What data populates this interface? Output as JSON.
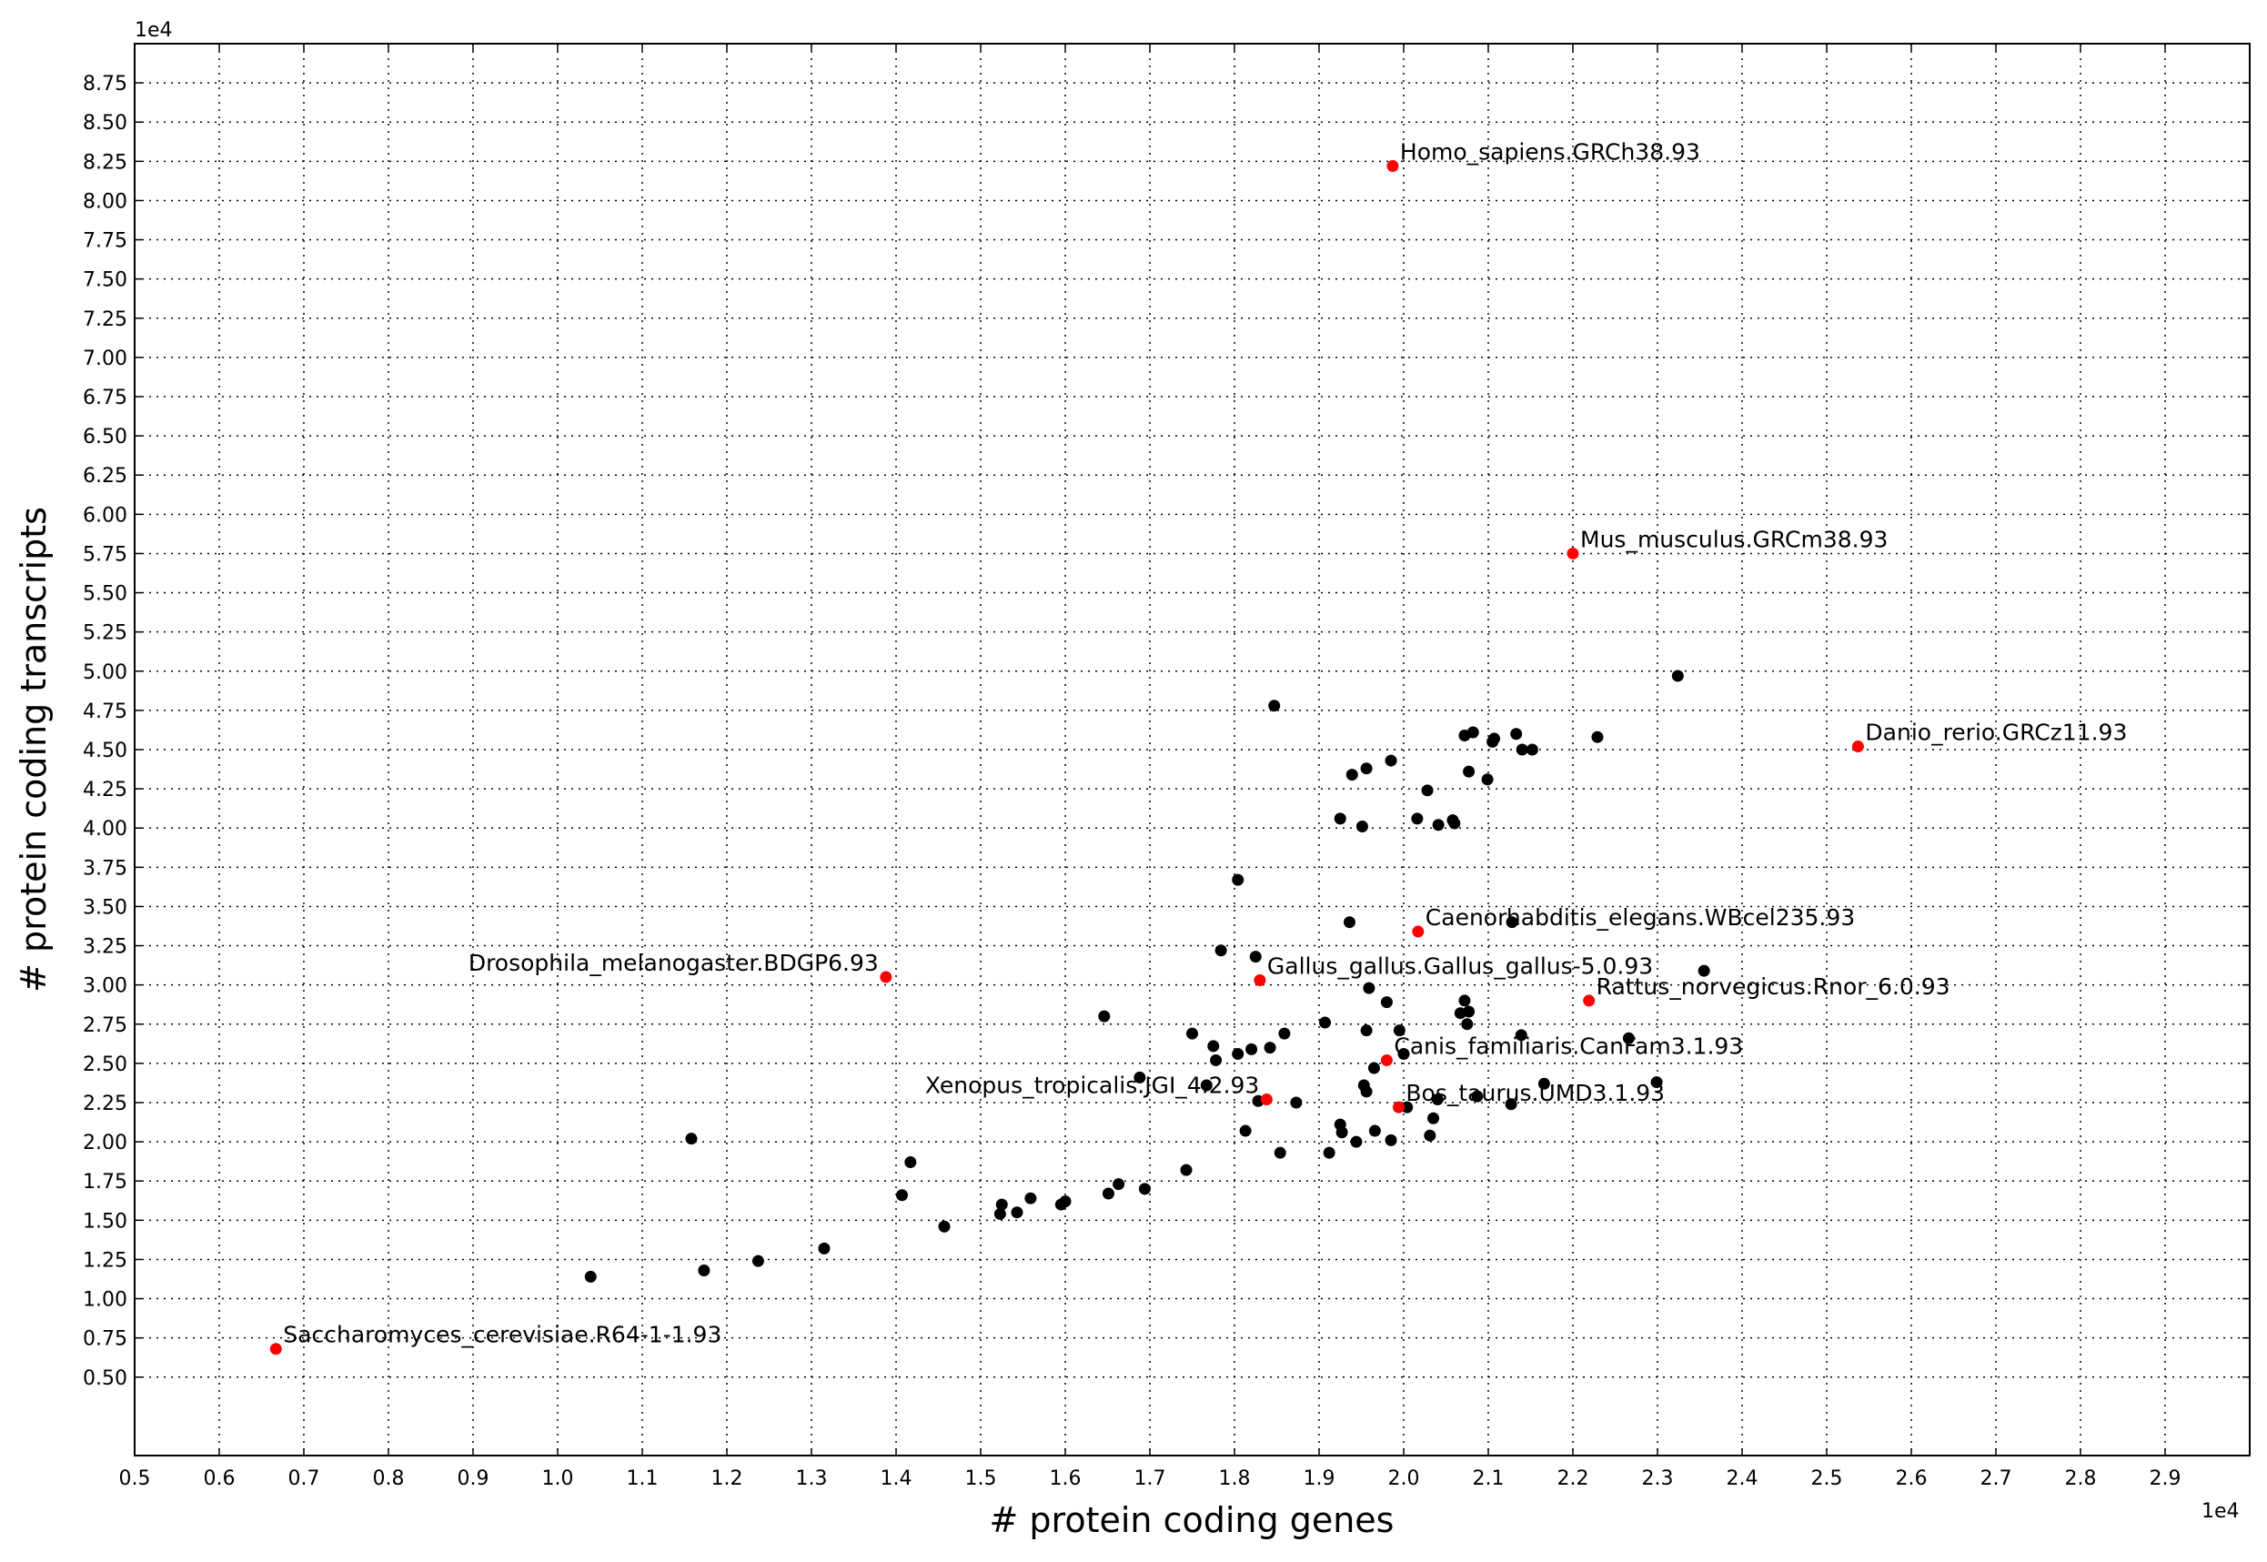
{
  "chart_data": {
    "type": "scatter",
    "title": "",
    "xlabel": "# protein coding genes",
    "ylabel": "# protein coding transcripts",
    "x_multiplier": "1e4",
    "y_multiplier": "1e4",
    "xlim": [
      0.5,
      3.0
    ],
    "ylim": [
      0.0,
      9.0
    ],
    "grid": true,
    "xticks": [
      "0.5",
      "0.6",
      "0.7",
      "0.8",
      "0.9",
      "1.0",
      "1.1",
      "1.2",
      "1.3",
      "1.4",
      "1.5",
      "1.6",
      "1.7",
      "1.8",
      "1.9",
      "2.0",
      "2.1",
      "2.2",
      "2.3",
      "2.4",
      "2.5",
      "2.6",
      "2.7",
      "2.8",
      "2.9"
    ],
    "yticks": [
      "0.50",
      "0.75",
      "1.00",
      "1.25",
      "1.50",
      "1.75",
      "2.00",
      "2.25",
      "2.50",
      "2.75",
      "3.00",
      "3.25",
      "3.50",
      "3.75",
      "4.00",
      "4.25",
      "4.50",
      "4.75",
      "5.00",
      "5.25",
      "5.50",
      "5.75",
      "6.00",
      "6.25",
      "6.50",
      "6.75",
      "7.00",
      "7.25",
      "7.50",
      "7.75",
      "8.00",
      "8.25",
      "8.50",
      "8.75"
    ],
    "colors": {
      "highlighted": "#ff0000",
      "other": "#000000"
    },
    "highlighted": [
      {
        "label": "Homo_sapiens.GRCh38.93",
        "x": 1.987,
        "y": 8.22,
        "side": "right"
      },
      {
        "label": "Mus_musculus.GRCm38.93",
        "x": 2.2,
        "y": 5.75,
        "side": "right"
      },
      {
        "label": "Danio_rerio.GRCz11.93",
        "x": 2.537,
        "y": 4.52,
        "side": "right"
      },
      {
        "label": "Caenorhabditis_elegans.WBcel235.93",
        "x": 2.017,
        "y": 3.34,
        "side": "right"
      },
      {
        "label": "Drosophila_melanogaster.BDGP6.93",
        "x": 1.388,
        "y": 3.05,
        "side": "left"
      },
      {
        "label": "Gallus_gallus.Gallus_gallus-5.0.93",
        "x": 1.83,
        "y": 3.03,
        "side": "right"
      },
      {
        "label": "Rattus_norvegicus.Rnor_6.0.93",
        "x": 2.219,
        "y": 2.9,
        "side": "right"
      },
      {
        "label": "Canis_familiaris.CanFam3.1.93",
        "x": 1.98,
        "y": 2.52,
        "side": "right"
      },
      {
        "label": "Xenopus_tropicalis.JGI_4.2.93",
        "x": 1.838,
        "y": 2.27,
        "side": "left"
      },
      {
        "label": "Bos_taurus.UMD3.1.93",
        "x": 1.994,
        "y": 2.22,
        "side": "right"
      },
      {
        "label": "Saccharomyces_cerevisiae.R64-1-1.93",
        "x": 0.667,
        "y": 0.68,
        "side": "right"
      }
    ],
    "others": [
      [
        2.324,
        4.97
      ],
      [
        1.847,
        4.78
      ],
      [
        2.072,
        4.59
      ],
      [
        2.082,
        4.61
      ],
      [
        2.133,
        4.6
      ],
      [
        2.105,
        4.55
      ],
      [
        2.107,
        4.57
      ],
      [
        2.14,
        4.5
      ],
      [
        2.152,
        4.5
      ],
      [
        2.229,
        4.58
      ],
      [
        1.985,
        4.43
      ],
      [
        1.956,
        4.38
      ],
      [
        1.939,
        4.34
      ],
      [
        2.077,
        4.36
      ],
      [
        2.099,
        4.31
      ],
      [
        2.028,
        4.24
      ],
      [
        1.925,
        4.06
      ],
      [
        1.951,
        4.01
      ],
      [
        2.016,
        4.06
      ],
      [
        2.041,
        4.02
      ],
      [
        2.058,
        4.05
      ],
      [
        2.06,
        4.03
      ],
      [
        1.804,
        3.67
      ],
      [
        1.936,
        3.4
      ],
      [
        2.128,
        3.4
      ],
      [
        1.784,
        3.22
      ],
      [
        1.825,
        3.18
      ],
      [
        2.355,
        3.09
      ],
      [
        1.959,
        2.98
      ],
      [
        1.98,
        2.89
      ],
      [
        2.072,
        2.9
      ],
      [
        2.077,
        2.83
      ],
      [
        2.067,
        2.82
      ],
      [
        2.075,
        2.75
      ],
      [
        1.646,
        2.8
      ],
      [
        1.907,
        2.76
      ],
      [
        1.859,
        2.69
      ],
      [
        1.75,
        2.69
      ],
      [
        2.139,
        2.68
      ],
      [
        2.266,
        2.66
      ],
      [
        1.956,
        2.71
      ],
      [
        1.995,
        2.71
      ],
      [
        1.775,
        2.61
      ],
      [
        1.82,
        2.59
      ],
      [
        1.842,
        2.6
      ],
      [
        1.804,
        2.56
      ],
      [
        1.778,
        2.52
      ],
      [
        2.0,
        2.56
      ],
      [
        1.965,
        2.47
      ],
      [
        1.688,
        2.41
      ],
      [
        1.767,
        2.36
      ],
      [
        1.953,
        2.36
      ],
      [
        1.956,
        2.32
      ],
      [
        2.166,
        2.37
      ],
      [
        2.299,
        2.38
      ],
      [
        1.828,
        2.26
      ],
      [
        1.873,
        2.25
      ],
      [
        2.004,
        2.22
      ],
      [
        2.04,
        2.27
      ],
      [
        2.087,
        2.29
      ],
      [
        2.127,
        2.24
      ],
      [
        2.035,
        2.15
      ],
      [
        1.925,
        2.11
      ],
      [
        1.927,
        2.06
      ],
      [
        1.966,
        2.07
      ],
      [
        2.031,
        2.04
      ],
      [
        1.944,
        2.0
      ],
      [
        1.985,
        2.01
      ],
      [
        1.813,
        2.07
      ],
      [
        1.854,
        1.93
      ],
      [
        1.912,
        1.93
      ],
      [
        1.158,
        2.02
      ],
      [
        1.417,
        1.87
      ],
      [
        1.407,
        1.66
      ],
      [
        1.743,
        1.82
      ],
      [
        1.663,
        1.73
      ],
      [
        1.694,
        1.7
      ],
      [
        1.651,
        1.67
      ],
      [
        1.559,
        1.64
      ],
      [
        1.6,
        1.62
      ],
      [
        1.595,
        1.6
      ],
      [
        1.525,
        1.6
      ],
      [
        1.523,
        1.54
      ],
      [
        1.543,
        1.55
      ],
      [
        1.457,
        1.46
      ],
      [
        1.315,
        1.32
      ],
      [
        1.237,
        1.24
      ],
      [
        1.173,
        1.18
      ],
      [
        1.039,
        1.14
      ]
    ]
  }
}
